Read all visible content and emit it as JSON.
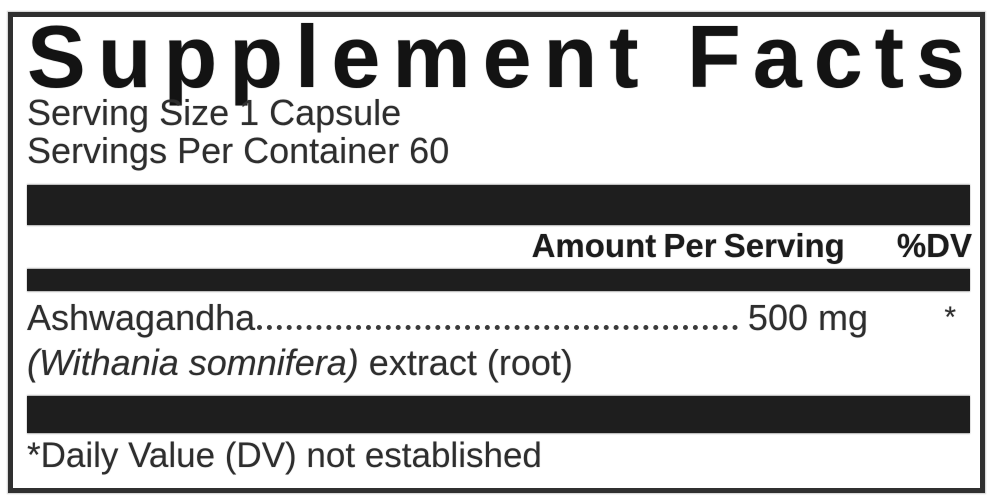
{
  "label": {
    "title": "Supplement Facts",
    "serving_size": "Serving Size 1 Capsule",
    "servings_per_container": "Servings Per Container 60",
    "header": {
      "amount_per_serving": "Amount Per Serving",
      "daily_value": "%DV"
    },
    "ingredients": [
      {
        "name": "Ashwagandha",
        "amount": "500 mg",
        "daily_value": "*",
        "botanical_name": "(Withania somnifera)",
        "description_suffix": " extract (root)"
      }
    ],
    "footnote": "*Daily Value (DV) not established",
    "colors": {
      "bar": "#1e1e1e",
      "border": "#303030",
      "text": "#2e2e2e",
      "title": "#131313"
    }
  }
}
